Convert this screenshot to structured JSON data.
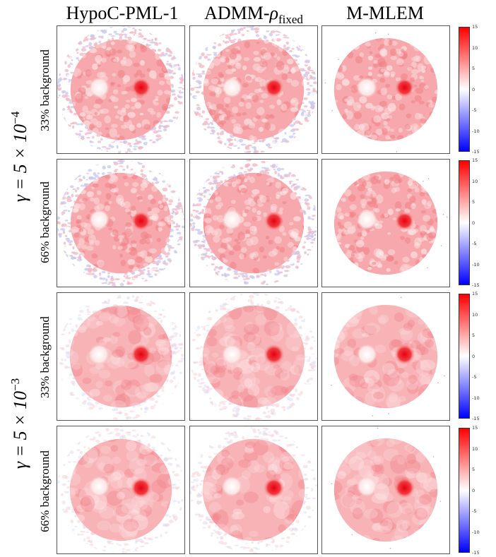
{
  "columns": [
    {
      "label": "HypoC-PML-1"
    },
    {
      "label_main": "ADMM-",
      "label_rho": "ρ",
      "label_sub": "fixed"
    },
    {
      "label": "M-MLEM"
    }
  ],
  "gamma_groups": [
    {
      "prefix": "γ = 5 × 10",
      "exponent": "−4"
    },
    {
      "prefix": "γ = 5 × 10",
      "exponent": "−3"
    }
  ],
  "rows": [
    {
      "background_label": "33% background"
    },
    {
      "background_label": "66% background"
    },
    {
      "background_label": "33% background"
    },
    {
      "background_label": "66% background"
    }
  ],
  "colorbar": {
    "ticks": [
      "15",
      "10",
      "5",
      "0",
      "-5",
      "-10",
      "-15"
    ],
    "colors": {
      "max": "#ff0000",
      "mid": "#ffffff",
      "min": "#0000ff"
    }
  }
}
